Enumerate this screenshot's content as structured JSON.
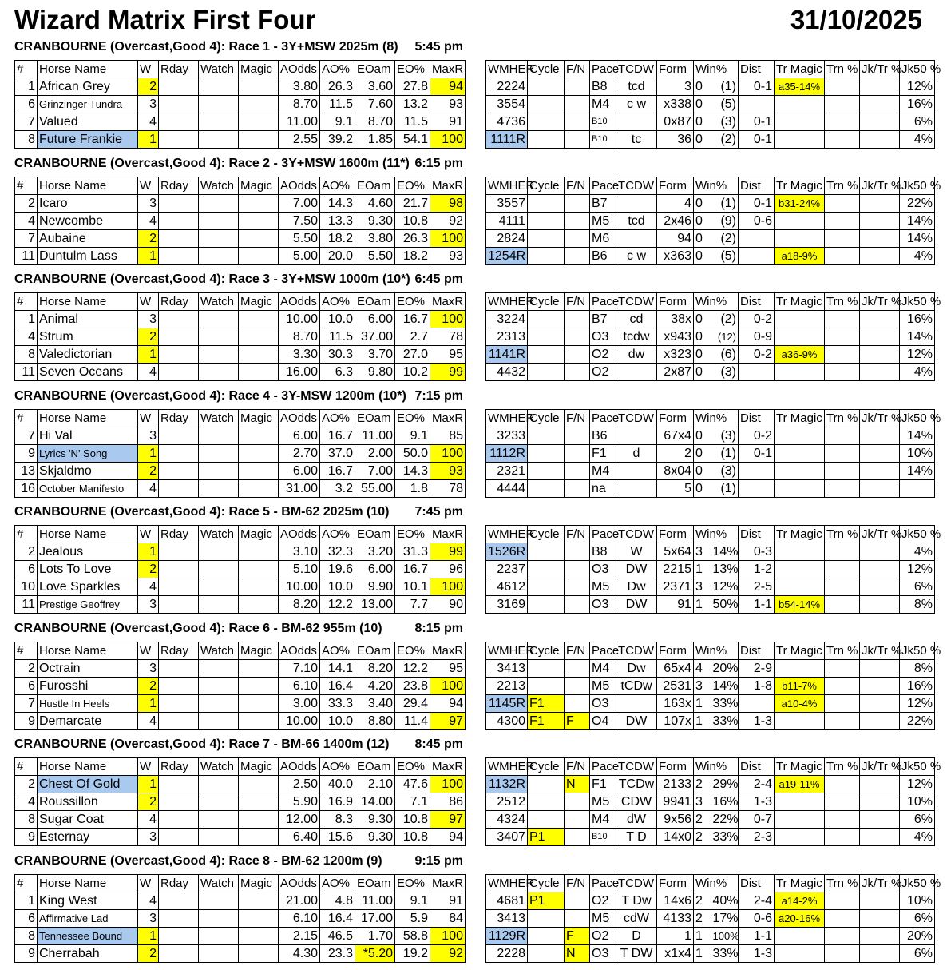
{
  "title": "Wizard Matrix First Four",
  "date": "31/10/2025",
  "colors": {
    "highlight": "#ffff00",
    "selection": "#a9c9ef"
  },
  "left_headers": [
    "#",
    "Horse Name",
    "W",
    "Rday",
    "Watch",
    "Magic",
    "AOdds",
    "AO%",
    "EOam",
    "EO%",
    "MaxR"
  ],
  "right_headers": [
    "WMHER",
    "Cycle",
    "F/N",
    "Pace",
    "TCDW",
    "Form",
    "Win%",
    "Dist",
    "Tr Magic",
    "Trn %",
    "Jk/Tr %",
    "Jk50 %"
  ],
  "races": [
    {
      "title": "CRANBOURNE (Overcast,Good 4): Race 1 - 3Y+MSW 2025m (8)",
      "time": "5:45 pm",
      "rows": [
        {
          "l": [
            "1",
            "African Grey",
            "2",
            "",
            "",
            "",
            "3.80",
            "26.3",
            "3.60",
            "27.8",
            "94"
          ],
          "hl": [
            2,
            10
          ],
          "r": [
            "2224",
            "",
            "",
            "B8",
            "tcd",
            "3",
            "0",
            "(1)",
            "0-1",
            "a35-14%",
            "",
            "",
            "12%"
          ]
        },
        {
          "l": [
            "6",
            "Grinzinger Tundra",
            "3",
            "",
            "",
            "",
            "8.70",
            "11.5",
            "7.60",
            "13.2",
            "93"
          ],
          "hl": [],
          "r": [
            "3554",
            "",
            "",
            "M4",
            "c w",
            "x338",
            "0",
            "(5)",
            "",
            "",
            "",
            "",
            "16%"
          ]
        },
        {
          "l": [
            "7",
            "Valued",
            "4",
            "",
            "",
            "",
            "11.00",
            "9.1",
            "8.70",
            "11.5",
            "91"
          ],
          "hl": [],
          "r": [
            "4736",
            "",
            "",
            "B10",
            "",
            "0x87",
            "0",
            "(3)",
            "0-1",
            "",
            "",
            "",
            "6%"
          ]
        },
        {
          "l": [
            "8",
            "Future Frankie",
            "1",
            "",
            "",
            "",
            "2.55",
            "39.2",
            "1.85",
            "54.1",
            "100"
          ],
          "hl": [
            2,
            10
          ],
          "blue": true,
          "r": [
            "1111R",
            "",
            "",
            "B10",
            "tc",
            "36",
            "0",
            "(2)",
            "0-1",
            "",
            "",
            "",
            "4%"
          ]
        }
      ]
    },
    {
      "title": "CRANBOURNE (Overcast,Good 4): Race 2 - 3Y+MSW 1600m (11*)",
      "time": "6:15 pm",
      "rows": [
        {
          "l": [
            "2",
            "Icaro",
            "3",
            "",
            "",
            "",
            "7.00",
            "14.3",
            "4.60",
            "21.7",
            "98"
          ],
          "hl": [
            10
          ],
          "r": [
            "3557",
            "",
            "",
            "B7",
            "",
            "4",
            "0",
            "(1)",
            "0-1",
            "b31-24%",
            "",
            "",
            "22%"
          ]
        },
        {
          "l": [
            "4",
            "Newcombe",
            "4",
            "",
            "",
            "",
            "7.50",
            "13.3",
            "9.30",
            "10.8",
            "92"
          ],
          "hl": [],
          "r": [
            "4111",
            "",
            "",
            "M5",
            "tcd",
            "2x46",
            "0",
            "(9)",
            "0-6",
            "",
            "",
            "",
            "14%"
          ]
        },
        {
          "l": [
            "7",
            "Aubaine",
            "2",
            "",
            "",
            "",
            "5.50",
            "18.2",
            "3.80",
            "26.3",
            "100"
          ],
          "hl": [
            2,
            10
          ],
          "r": [
            "2824",
            "",
            "",
            "M6",
            "",
            "94",
            "0",
            "(2)",
            "",
            "",
            "",
            "",
            "14%"
          ]
        },
        {
          "l": [
            "11",
            "Duntulm Lass",
            "1",
            "",
            "",
            "",
            "5.00",
            "20.0",
            "5.50",
            "18.2",
            "93"
          ],
          "hl": [
            2
          ],
          "r": [
            "1254R",
            "",
            "",
            "B6",
            "c w",
            "x363",
            "0",
            "(5)",
            "",
            "a18-9%",
            "",
            "",
            "4%"
          ]
        }
      ]
    },
    {
      "title": "CRANBOURNE (Overcast,Good 4): Race 3 - 3Y+MSW 1000m (10*)",
      "time": "6:45 pm",
      "rows": [
        {
          "l": [
            "1",
            "Animal",
            "3",
            "",
            "",
            "",
            "10.00",
            "10.0",
            "6.00",
            "16.7",
            "100"
          ],
          "hl": [
            10
          ],
          "r": [
            "3224",
            "",
            "",
            "B7",
            "cd",
            "38x",
            "0",
            "(2)",
            "0-2",
            "",
            "",
            "",
            "16%"
          ]
        },
        {
          "l": [
            "4",
            "Strum",
            "2",
            "",
            "",
            "",
            "8.70",
            "11.5",
            "37.00",
            "2.7",
            "78"
          ],
          "hl": [
            2
          ],
          "r": [
            "2313",
            "",
            "",
            "O3",
            "tcdw",
            "x943",
            "0",
            "(12)",
            "0-9",
            "",
            "",
            "",
            "14%"
          ]
        },
        {
          "l": [
            "8",
            "Valedictorian",
            "1",
            "",
            "",
            "",
            "3.30",
            "30.3",
            "3.70",
            "27.0",
            "95"
          ],
          "hl": [
            2
          ],
          "r": [
            "1141R",
            "",
            "",
            "O2",
            "dw",
            "x323",
            "0",
            "(6)",
            "0-2",
            "a36-9%",
            "",
            "",
            "12%"
          ]
        },
        {
          "l": [
            "11",
            "Seven Oceans",
            "4",
            "",
            "",
            "",
            "16.00",
            "6.3",
            "9.80",
            "10.2",
            "99"
          ],
          "hl": [
            10
          ],
          "r": [
            "4432",
            "",
            "",
            "O2",
            "",
            "2x87",
            "0",
            "(3)",
            "",
            "",
            "",
            "",
            "4%"
          ]
        }
      ]
    },
    {
      "title": "CRANBOURNE (Overcast,Good 4): Race 4 - 3Y-MSW 1200m (10*)",
      "time": "7:15 pm",
      "rows": [
        {
          "l": [
            "7",
            "Hi Val",
            "3",
            "",
            "",
            "",
            "6.00",
            "16.7",
            "11.00",
            "9.1",
            "85"
          ],
          "hl": [],
          "r": [
            "3233",
            "",
            "",
            "B6",
            "",
            "67x4",
            "0",
            "(3)",
            "0-2",
            "",
            "",
            "",
            "14%"
          ]
        },
        {
          "l": [
            "9",
            "Lyrics 'N' Song",
            "1",
            "",
            "",
            "",
            "2.70",
            "37.0",
            "2.00",
            "50.0",
            "100"
          ],
          "hl": [
            2,
            10
          ],
          "blue": true,
          "r": [
            "1112R",
            "",
            "",
            "F1",
            "d",
            "2",
            "0",
            "(1)",
            "0-1",
            "",
            "",
            "",
            "10%"
          ]
        },
        {
          "l": [
            "13",
            "Skjaldmo",
            "2",
            "",
            "",
            "",
            "6.00",
            "16.7",
            "7.00",
            "14.3",
            "93"
          ],
          "hl": [
            2,
            10
          ],
          "r": [
            "2321",
            "",
            "",
            "M4",
            "",
            "8x04",
            "0",
            "(3)",
            "",
            "",
            "",
            "",
            "14%"
          ]
        },
        {
          "l": [
            "16",
            "October Manifesto",
            "4",
            "",
            "",
            "",
            "31.00",
            "3.2",
            "55.00",
            "1.8",
            "78"
          ],
          "hl": [],
          "r": [
            "4444",
            "",
            "",
            "na",
            "",
            "5",
            "0",
            "(1)",
            "",
            "",
            "",
            "",
            ""
          ]
        }
      ]
    },
    {
      "title": "CRANBOURNE (Overcast,Good 4): Race 5 - BM-62 2025m (10)",
      "time": "7:45 pm",
      "rows": [
        {
          "l": [
            "2",
            "Jealous",
            "1",
            "",
            "",
            "",
            "3.10",
            "32.3",
            "3.20",
            "31.3",
            "99"
          ],
          "hl": [
            2,
            10
          ],
          "r": [
            "1526R",
            "",
            "",
            "B8",
            "W",
            "5x64",
            "3",
            "14%",
            "0-3",
            "",
            "",
            "",
            "4%"
          ]
        },
        {
          "l": [
            "6",
            "Lots To Love",
            "2",
            "",
            "",
            "",
            "5.10",
            "19.6",
            "6.00",
            "16.7",
            "96"
          ],
          "hl": [
            2
          ],
          "r": [
            "2237",
            "",
            "",
            "O3",
            "DW",
            "2215",
            "1",
            "13%",
            "1-2",
            "",
            "",
            "",
            "12%"
          ]
        },
        {
          "l": [
            "10",
            "Love Sparkles",
            "4",
            "",
            "",
            "",
            "10.00",
            "10.0",
            "9.90",
            "10.1",
            "100"
          ],
          "hl": [
            10
          ],
          "r": [
            "4612",
            "",
            "",
            "M5",
            "Dw",
            "2371",
            "3",
            "12%",
            "2-5",
            "",
            "",
            "",
            "6%"
          ]
        },
        {
          "l": [
            "11",
            "Prestige Geoffrey",
            "3",
            "",
            "",
            "",
            "8.20",
            "12.2",
            "13.00",
            "7.7",
            "90"
          ],
          "hl": [],
          "r": [
            "3169",
            "",
            "",
            "O3",
            "DW",
            "91",
            "1",
            "50%",
            "1-1",
            "b54-14%",
            "",
            "",
            "8%"
          ]
        }
      ]
    },
    {
      "title": "CRANBOURNE (Overcast,Good 4): Race 6 - BM-62 955m (10)",
      "time": "8:15 pm",
      "rows": [
        {
          "l": [
            "2",
            "Octrain",
            "3",
            "",
            "",
            "",
            "7.10",
            "14.1",
            "8.20",
            "12.2",
            "95"
          ],
          "hl": [],
          "r": [
            "3413",
            "",
            "",
            "M4",
            "Dw",
            "65x4",
            "4",
            "20%",
            "2-9",
            "",
            "",
            "",
            "8%"
          ]
        },
        {
          "l": [
            "6",
            "Furosshi",
            "2",
            "",
            "",
            "",
            "6.10",
            "16.4",
            "4.20",
            "23.8",
            "100"
          ],
          "hl": [
            2,
            10
          ],
          "r": [
            "2213",
            "",
            "",
            "M5",
            "tCDw",
            "2531",
            "3",
            "14%",
            "1-8",
            "b11-7%",
            "",
            "",
            "16%"
          ]
        },
        {
          "l": [
            "7",
            "Hustle In Heels",
            "1",
            "",
            "",
            "",
            "3.00",
            "33.3",
            "3.40",
            "29.4",
            "94"
          ],
          "hl": [
            2
          ],
          "r": [
            "1145R",
            "F1",
            "",
            "O3",
            "",
            "163x",
            "1",
            "33%",
            "",
            "a10-4%",
            "",
            "",
            "12%"
          ]
        },
        {
          "l": [
            "9",
            "Demarcate",
            "4",
            "",
            "",
            "",
            "10.00",
            "10.0",
            "8.80",
            "11.4",
            "97"
          ],
          "hl": [
            10
          ],
          "r": [
            "4300",
            "F1",
            "F",
            "O4",
            "DW",
            "107x",
            "1",
            "33%",
            "1-3",
            "",
            "",
            "",
            "22%"
          ]
        }
      ]
    },
    {
      "title": "CRANBOURNE (Overcast,Good 4): Race 7 - BM-66 1400m (12)",
      "time": "8:45 pm",
      "rows": [
        {
          "l": [
            "2",
            "Chest Of Gold",
            "1",
            "",
            "",
            "",
            "2.50",
            "40.0",
            "2.10",
            "47.6",
            "100"
          ],
          "hl": [
            2,
            10
          ],
          "blue": true,
          "r": [
            "1132R",
            "",
            "N",
            "F1",
            "TCDw",
            "2133",
            "2",
            "29%",
            "2-4",
            "a19-11%",
            "",
            "",
            "12%"
          ]
        },
        {
          "l": [
            "4",
            "Roussillon",
            "2",
            "",
            "",
            "",
            "5.90",
            "16.9",
            "14.00",
            "7.1",
            "86"
          ],
          "hl": [
            2
          ],
          "r": [
            "2512",
            "",
            "",
            "M5",
            "CDW",
            "9941",
            "3",
            "16%",
            "1-3",
            "",
            "",
            "",
            "10%"
          ]
        },
        {
          "l": [
            "8",
            "Sugar Coat",
            "4",
            "",
            "",
            "",
            "12.00",
            "8.3",
            "9.30",
            "10.8",
            "97"
          ],
          "hl": [
            10
          ],
          "r": [
            "4324",
            "",
            "",
            "M4",
            "dW",
            "9x56",
            "2",
            "22%",
            "0-7",
            "",
            "",
            "",
            "6%"
          ]
        },
        {
          "l": [
            "9",
            "Esternay",
            "3",
            "",
            "",
            "",
            "6.40",
            "15.6",
            "9.30",
            "10.8",
            "94"
          ],
          "hl": [],
          "r": [
            "3407",
            "P1",
            "",
            "B10",
            "T D",
            "14x0",
            "2",
            "33%",
            "2-3",
            "",
            "",
            "",
            "4%"
          ]
        }
      ]
    },
    {
      "title": "CRANBOURNE (Overcast,Good 4): Race 8 - BM-62 1200m (9)",
      "time": "9:15 pm",
      "rows": [
        {
          "l": [
            "1",
            "King West",
            "4",
            "",
            "",
            "",
            "21.00",
            "4.8",
            "11.00",
            "9.1",
            "91"
          ],
          "hl": [],
          "r": [
            "4681",
            "P1",
            "",
            "O2",
            "T Dw",
            "14x6",
            "2",
            "40%",
            "2-4",
            "a14-2%",
            "",
            "",
            "10%"
          ]
        },
        {
          "l": [
            "6",
            "Affirmative Lad",
            "3",
            "",
            "",
            "",
            "6.10",
            "16.4",
            "17.00",
            "5.9",
            "84"
          ],
          "hl": [],
          "r": [
            "3413",
            "",
            "",
            "M5",
            "cdW",
            "4133",
            "2",
            "17%",
            "0-6",
            "a20-16%",
            "",
            "",
            "6%"
          ]
        },
        {
          "l": [
            "8",
            "Tennessee Bound",
            "1",
            "",
            "",
            "",
            "2.15",
            "46.5",
            "1.70",
            "58.8",
            "100"
          ],
          "hl": [
            2,
            10
          ],
          "blue": true,
          "r": [
            "1129R",
            "",
            "F",
            "O2",
            "D",
            "1",
            "1",
            "100%",
            "1-1",
            "",
            "",
            "",
            "20%"
          ]
        },
        {
          "l": [
            "9",
            "Cherrabah",
            "2",
            "",
            "",
            "",
            "4.30",
            "23.3",
            "*5.20",
            "19.2",
            "92"
          ],
          "hl": [
            2,
            8,
            10
          ],
          "r": [
            "2228",
            "",
            "N",
            "O3",
            "T DW",
            "x1x4",
            "1",
            "33%",
            "1-3",
            "",
            "",
            "",
            "6%"
          ]
        }
      ]
    }
  ]
}
